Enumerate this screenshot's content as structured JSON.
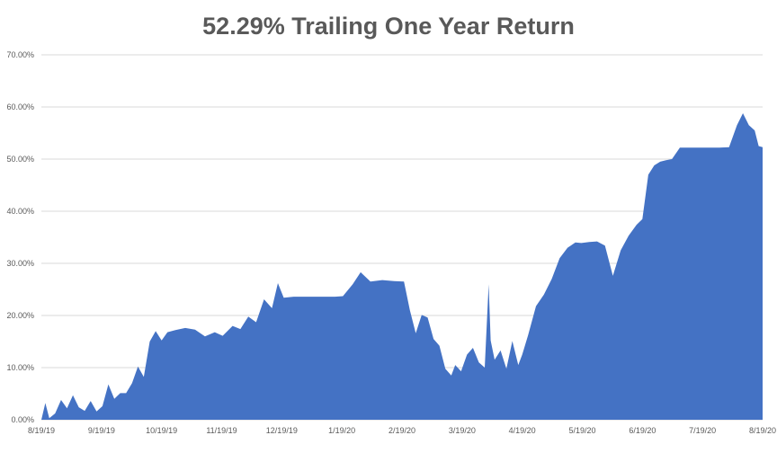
{
  "chart_data": {
    "type": "area",
    "title": "52.29% Trailing One Year Return",
    "xlabel": "",
    "ylabel": "",
    "x_tick_labels": [
      "8/19/19",
      "9/19/19",
      "10/19/19",
      "11/19/19",
      "12/19/19",
      "1/19/20",
      "2/19/20",
      "3/19/20",
      "4/19/20",
      "5/19/20",
      "6/19/20",
      "7/19/20",
      "8/19/20"
    ],
    "y_tick_labels": [
      "0.00%",
      "10.00%",
      "20.00%",
      "30.00%",
      "40.00%",
      "50.00%",
      "60.00%",
      "70.00%"
    ],
    "ylim": [
      0,
      70
    ],
    "grid": "horizontal",
    "color": "#4472C4",
    "series": [
      {
        "x": [
          "2019-08-19",
          "2019-08-21",
          "2019-08-23",
          "2019-08-26",
          "2019-08-29",
          "2019-09-01",
          "2019-09-04",
          "2019-09-07",
          "2019-09-10",
          "2019-09-13",
          "2019-09-16",
          "2019-09-19",
          "2019-09-22",
          "2019-09-25",
          "2019-09-28",
          "2019-10-01",
          "2019-10-04",
          "2019-10-07",
          "2019-10-10",
          "2019-10-13",
          "2019-10-16",
          "2019-10-19",
          "2019-10-22",
          "2019-10-26",
          "2019-10-31",
          "2019-11-05",
          "2019-11-10",
          "2019-11-15",
          "2019-11-19",
          "2019-11-24",
          "2019-11-28",
          "2019-12-02",
          "2019-12-06",
          "2019-12-10",
          "2019-12-14",
          "2019-12-17",
          "2019-12-20",
          "2019-12-25",
          "2020-01-01",
          "2020-01-08",
          "2020-01-15",
          "2020-01-19",
          "2020-01-24",
          "2020-01-28",
          "2020-02-02",
          "2020-02-08",
          "2020-02-14",
          "2020-02-19",
          "2020-02-22",
          "2020-02-25",
          "2020-02-28",
          "2020-03-02",
          "2020-03-05",
          "2020-03-08",
          "2020-03-11",
          "2020-03-14",
          "2020-03-16",
          "2020-03-19",
          "2020-03-22",
          "2020-03-25",
          "2020-03-28",
          "2020-03-31",
          "2020-04-02",
          "2020-04-03",
          "2020-04-05",
          "2020-04-08",
          "2020-04-11",
          "2020-04-14",
          "2020-04-17",
          "2020-04-19",
          "2020-04-22",
          "2020-04-26",
          "2020-04-30",
          "2020-05-04",
          "2020-05-08",
          "2020-05-12",
          "2020-05-16",
          "2020-05-19",
          "2020-05-23",
          "2020-05-27",
          "2020-05-31",
          "2020-06-04",
          "2020-06-08",
          "2020-06-12",
          "2020-06-16",
          "2020-06-19",
          "2020-06-22",
          "2020-06-25",
          "2020-06-28",
          "2020-07-01",
          "2020-07-04",
          "2020-07-08",
          "2020-07-12",
          "2020-07-16",
          "2020-07-19",
          "2020-07-23",
          "2020-07-28",
          "2020-08-02",
          "2020-08-06",
          "2020-08-09",
          "2020-08-12",
          "2020-08-15",
          "2020-08-17",
          "2020-08-19"
        ],
        "y": [
          0,
          3.2,
          0.3,
          1.2,
          3.8,
          2.2,
          4.7,
          2.4,
          1.7,
          3.6,
          1.6,
          2.6,
          6.8,
          4.0,
          5.1,
          5.1,
          7.0,
          10.2,
          8.2,
          15.0,
          17.0,
          15.2,
          16.8,
          17.2,
          17.6,
          17.3,
          16.0,
          16.8,
          16.1,
          18.0,
          17.4,
          19.8,
          18.7,
          23.1,
          21.4,
          26.2,
          23.4,
          23.6,
          23.6,
          23.6,
          23.6,
          23.7,
          26.0,
          28.3,
          26.5,
          26.8,
          26.6,
          26.5,
          21.0,
          16.6,
          20.1,
          19.6,
          15.5,
          14.2,
          9.8,
          8.5,
          10.5,
          9.3,
          12.5,
          13.8,
          11.0,
          10.0,
          26.0,
          15.2,
          11.5,
          13.3,
          9.8,
          15.1,
          10.5,
          12.5,
          16.2,
          21.8,
          24.0,
          27.0,
          31.0,
          33.0,
          34.0,
          33.9,
          34.1,
          34.2,
          33.4,
          27.6,
          32.5,
          35.3,
          37.4,
          38.5,
          47.0,
          48.8,
          49.5,
          49.8,
          50.0,
          52.2,
          52.2,
          52.2,
          52.2,
          52.2,
          52.2,
          52.3,
          56.5,
          58.8,
          56.5,
          55.5,
          52.5,
          52.3
        ]
      }
    ]
  }
}
